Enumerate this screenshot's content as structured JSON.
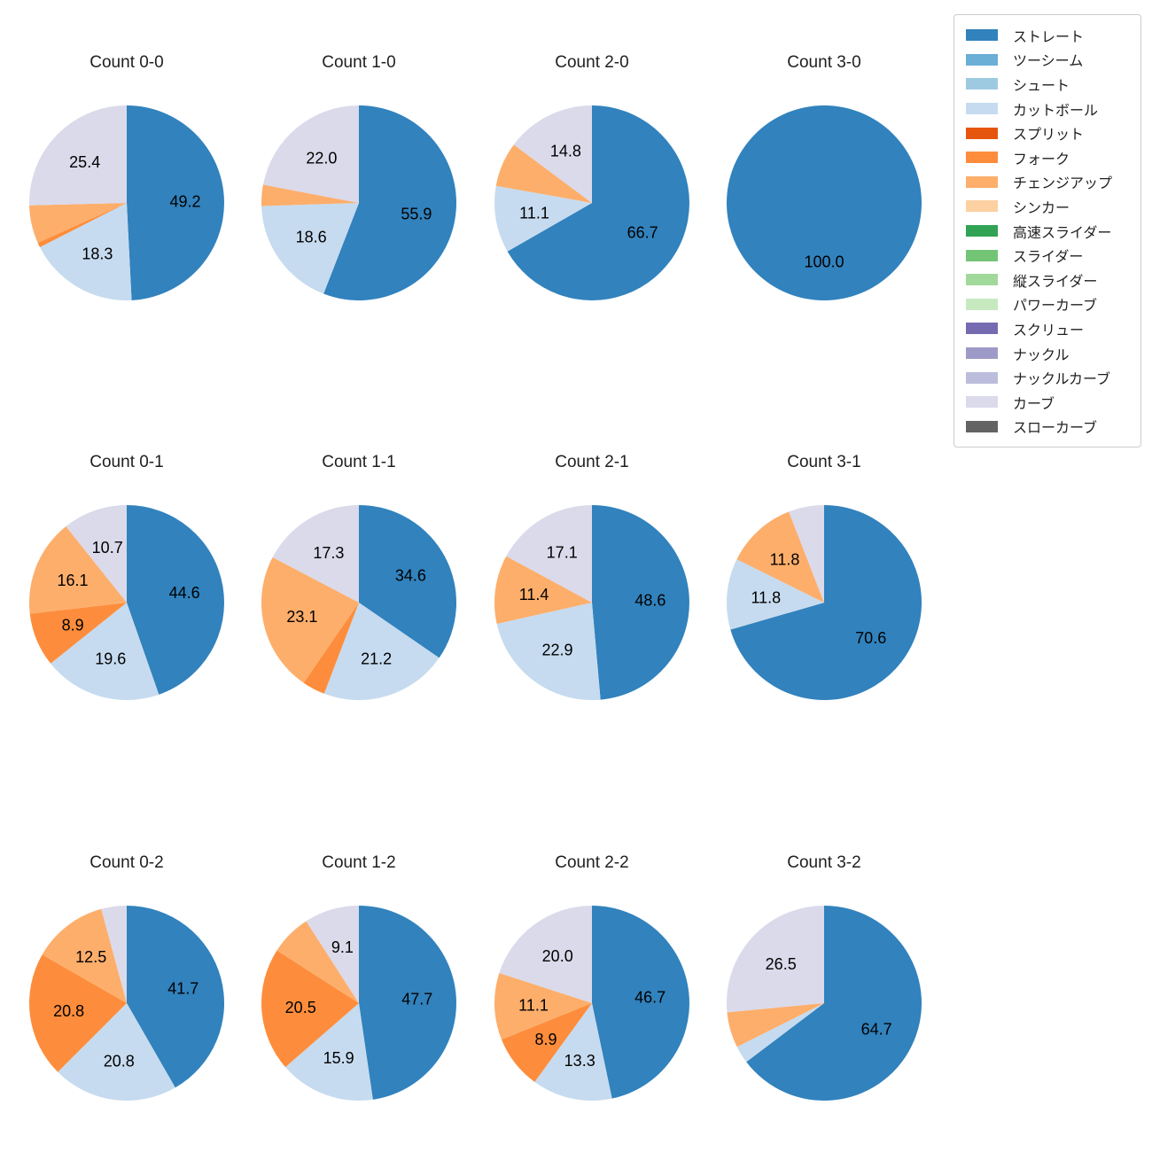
{
  "figure": {
    "background": "#ffffff",
    "grid": {
      "columns": 4,
      "rows": 3
    }
  },
  "legend": {
    "position": "top-right",
    "items": [
      {
        "label": "ストレート",
        "key": "straight",
        "color": "#3182bd"
      },
      {
        "label": "ツーシーム",
        "key": "two-seam",
        "color": "#6baed6"
      },
      {
        "label": "シュート",
        "key": "shoot",
        "color": "#9ecae1"
      },
      {
        "label": "カットボール",
        "key": "cut-ball",
        "color": "#c6dbef"
      },
      {
        "label": "スプリット",
        "key": "split",
        "color": "#e6550d"
      },
      {
        "label": "フォーク",
        "key": "fork",
        "color": "#fd8d3c"
      },
      {
        "label": "チェンジアップ",
        "key": "changeup",
        "color": "#fdae6b"
      },
      {
        "label": "シンカー",
        "key": "sinker",
        "color": "#fdd0a2"
      },
      {
        "label": "高速スライダー",
        "key": "fast-slider",
        "color": "#31a354"
      },
      {
        "label": "スライダー",
        "key": "slider",
        "color": "#74c476"
      },
      {
        "label": "縦スライダー",
        "key": "vertical-slider",
        "color": "#a1d99b"
      },
      {
        "label": "パワーカーブ",
        "key": "power-curve",
        "color": "#c7e9c0"
      },
      {
        "label": "スクリュー",
        "key": "screw",
        "color": "#756bb1"
      },
      {
        "label": "ナックル",
        "key": "knuckle",
        "color": "#9e9ac8"
      },
      {
        "label": "ナックルカーブ",
        "key": "knuckle-curve",
        "color": "#bcbddc"
      },
      {
        "label": "カーブ",
        "key": "curve",
        "color": "#dadaeb"
      },
      {
        "label": "スローカーブ",
        "key": "slow-curve",
        "color": "#636363"
      }
    ]
  },
  "chart_data": [
    {
      "type": "pie",
      "title": "Count 0-0",
      "start_angle": 90,
      "counterclock": false,
      "pct_distance": 0.6,
      "label_min_pct": 8,
      "slices": [
        {
          "pitch": "ストレート",
          "value": 49.2
        },
        {
          "pitch": "カットボール",
          "value": 18.3
        },
        {
          "pitch": "フォーク",
          "value": 0.8
        },
        {
          "pitch": "チェンジアップ",
          "value": 6.3
        },
        {
          "pitch": "カーブ",
          "value": 25.4
        }
      ]
    },
    {
      "type": "pie",
      "title": "Count 1-0",
      "start_angle": 90,
      "counterclock": false,
      "pct_distance": 0.6,
      "label_min_pct": 8,
      "slices": [
        {
          "pitch": "ストレート",
          "value": 55.9
        },
        {
          "pitch": "カットボール",
          "value": 18.6
        },
        {
          "pitch": "チェンジアップ",
          "value": 3.5
        },
        {
          "pitch": "カーブ",
          "value": 22.0
        }
      ]
    },
    {
      "type": "pie",
      "title": "Count 2-0",
      "start_angle": 90,
      "counterclock": false,
      "pct_distance": 0.6,
      "label_min_pct": 8,
      "slices": [
        {
          "pitch": "ストレート",
          "value": 66.7
        },
        {
          "pitch": "カットボール",
          "value": 11.1
        },
        {
          "pitch": "チェンジアップ",
          "value": 7.4
        },
        {
          "pitch": "カーブ",
          "value": 14.8
        }
      ]
    },
    {
      "type": "pie",
      "title": "Count 3-0",
      "start_angle": 90,
      "counterclock": false,
      "pct_distance": 0.6,
      "label_min_pct": 8,
      "slices": [
        {
          "pitch": "ストレート",
          "value": 100.0
        }
      ]
    },
    {
      "type": "pie",
      "title": "Count 0-1",
      "start_angle": 90,
      "counterclock": false,
      "pct_distance": 0.6,
      "label_min_pct": 8,
      "slices": [
        {
          "pitch": "ストレート",
          "value": 44.6
        },
        {
          "pitch": "カットボール",
          "value": 19.6
        },
        {
          "pitch": "フォーク",
          "value": 8.9
        },
        {
          "pitch": "チェンジアップ",
          "value": 16.1
        },
        {
          "pitch": "カーブ",
          "value": 10.7
        }
      ]
    },
    {
      "type": "pie",
      "title": "Count 1-1",
      "start_angle": 90,
      "counterclock": false,
      "pct_distance": 0.6,
      "label_min_pct": 8,
      "slices": [
        {
          "pitch": "ストレート",
          "value": 34.6
        },
        {
          "pitch": "カットボール",
          "value": 21.2
        },
        {
          "pitch": "フォーク",
          "value": 3.8
        },
        {
          "pitch": "チェンジアップ",
          "value": 23.1
        },
        {
          "pitch": "カーブ",
          "value": 17.3
        }
      ]
    },
    {
      "type": "pie",
      "title": "Count 2-1",
      "start_angle": 90,
      "counterclock": false,
      "pct_distance": 0.6,
      "label_min_pct": 8,
      "slices": [
        {
          "pitch": "ストレート",
          "value": 48.6
        },
        {
          "pitch": "カットボール",
          "value": 22.9
        },
        {
          "pitch": "チェンジアップ",
          "value": 11.4
        },
        {
          "pitch": "カーブ",
          "value": 17.1
        }
      ]
    },
    {
      "type": "pie",
      "title": "Count 3-1",
      "start_angle": 90,
      "counterclock": false,
      "pct_distance": 0.6,
      "label_min_pct": 8,
      "slices": [
        {
          "pitch": "ストレート",
          "value": 70.6
        },
        {
          "pitch": "カットボール",
          "value": 11.8
        },
        {
          "pitch": "チェンジアップ",
          "value": 11.8
        },
        {
          "pitch": "カーブ",
          "value": 5.9
        }
      ]
    },
    {
      "type": "pie",
      "title": "Count 0-2",
      "start_angle": 90,
      "counterclock": false,
      "pct_distance": 0.6,
      "label_min_pct": 8,
      "slices": [
        {
          "pitch": "ストレート",
          "value": 41.7
        },
        {
          "pitch": "カットボール",
          "value": 20.8
        },
        {
          "pitch": "フォーク",
          "value": 20.8
        },
        {
          "pitch": "チェンジアップ",
          "value": 12.5
        },
        {
          "pitch": "カーブ",
          "value": 4.2
        }
      ]
    },
    {
      "type": "pie",
      "title": "Count 1-2",
      "start_angle": 90,
      "counterclock": false,
      "pct_distance": 0.6,
      "label_min_pct": 8,
      "slices": [
        {
          "pitch": "ストレート",
          "value": 47.7
        },
        {
          "pitch": "カットボール",
          "value": 15.9
        },
        {
          "pitch": "フォーク",
          "value": 20.5
        },
        {
          "pitch": "チェンジアップ",
          "value": 6.8
        },
        {
          "pitch": "カーブ",
          "value": 9.1
        }
      ]
    },
    {
      "type": "pie",
      "title": "Count 2-2",
      "start_angle": 90,
      "counterclock": false,
      "pct_distance": 0.6,
      "label_min_pct": 8,
      "slices": [
        {
          "pitch": "ストレート",
          "value": 46.7
        },
        {
          "pitch": "カットボール",
          "value": 13.3
        },
        {
          "pitch": "フォーク",
          "value": 8.9
        },
        {
          "pitch": "チェンジアップ",
          "value": 11.1
        },
        {
          "pitch": "カーブ",
          "value": 20.0
        }
      ]
    },
    {
      "type": "pie",
      "title": "Count 3-2",
      "start_angle": 90,
      "counterclock": false,
      "pct_distance": 0.6,
      "label_min_pct": 8,
      "slices": [
        {
          "pitch": "ストレート",
          "value": 64.7
        },
        {
          "pitch": "カットボール",
          "value": 2.9
        },
        {
          "pitch": "チェンジアップ",
          "value": 5.9
        },
        {
          "pitch": "カーブ",
          "value": 26.5
        }
      ]
    }
  ]
}
